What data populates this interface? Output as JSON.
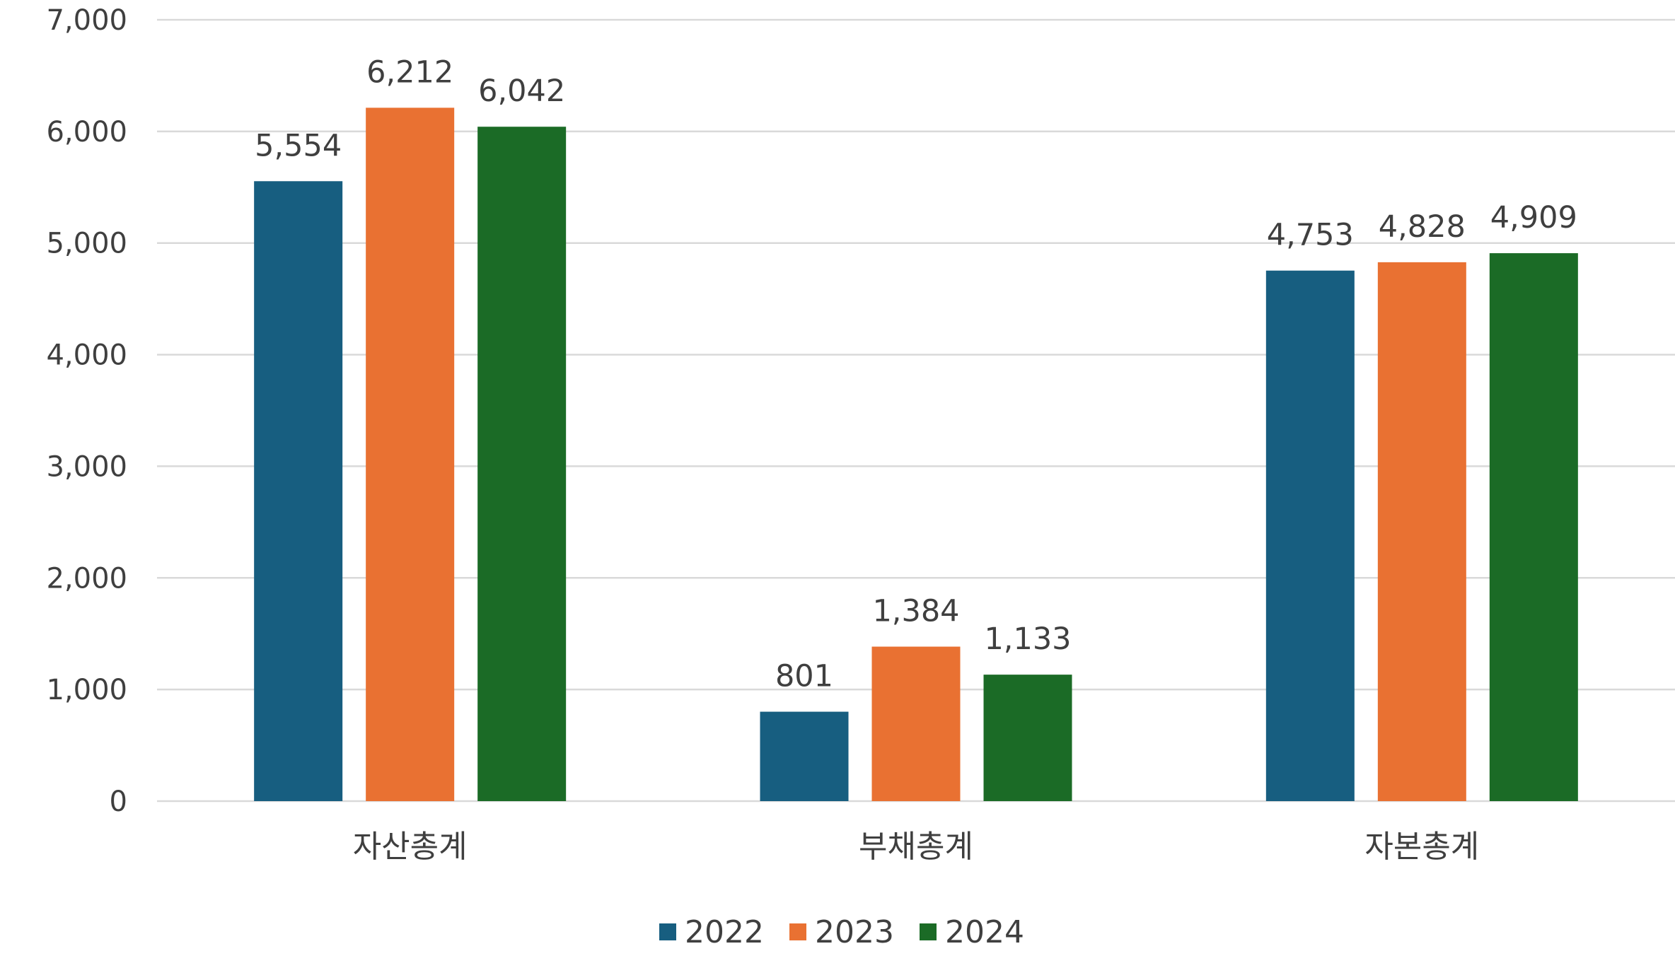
{
  "chart_data": {
    "type": "bar",
    "title": "",
    "xlabel": "",
    "ylabel": "",
    "categories": [
      "자산총계",
      "부채총계",
      "자본총계"
    ],
    "series": [
      {
        "name": "2022",
        "values": [
          5554,
          801,
          4753
        ],
        "color": "#175e80"
      },
      {
        "name": "2023",
        "values": [
          6212,
          1384,
          4828
        ],
        "color": "#e97132"
      },
      {
        "name": "2024",
        "values": [
          6042,
          1133,
          4909
        ],
        "color": "#1b6b26"
      }
    ],
    "data_labels": [
      [
        "5,554",
        "801",
        "4,753"
      ],
      [
        "6,212",
        "1,384",
        "4,828"
      ],
      [
        "6,042",
        "1,133",
        "4,909"
      ]
    ],
    "ylim": [
      0,
      7000
    ],
    "yticks": [
      0,
      1000,
      2000,
      3000,
      4000,
      5000,
      6000,
      7000
    ],
    "ytick_labels": [
      "0",
      "1,000",
      "2,000",
      "3,000",
      "4,000",
      "5,000",
      "6,000",
      "7,000"
    ],
    "grid": true,
    "legend_position": "bottom"
  }
}
